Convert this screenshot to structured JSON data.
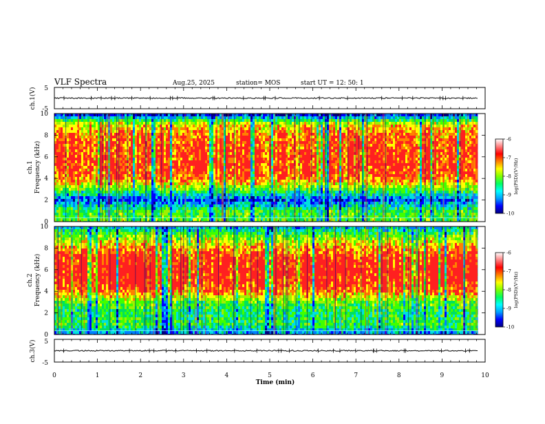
{
  "header": {
    "title": "VLF Spectra",
    "date": "Aug.25, 2025",
    "station": "station= MOS",
    "start": "start  UT  =   12: 50: 1"
  },
  "colors": {
    "spec": [
      "#000080",
      "#0000ff",
      "#0080ff",
      "#00e0e0",
      "#00e060",
      "#40ff00",
      "#a0f000",
      "#ffff00",
      "#ff8000",
      "#ff2020"
    ],
    "colorbar": [
      "#000080",
      "#0000ff",
      "#00a0ff",
      "#00ffff",
      "#00ff60",
      "#80ff00",
      "#ffff00",
      "#ff8000",
      "#ff0000",
      "#ff8080",
      "#ffffff"
    ]
  },
  "chart_data": [
    {
      "type": "line",
      "name": "ch1-waveform",
      "ylabel": "ch.1(V)",
      "ylim": [
        -5,
        5
      ],
      "y_ticks": [
        "5",
        "-5"
      ],
      "baseline_value": 0
    },
    {
      "type": "heatmap",
      "name": "ch1-spectrogram",
      "ylabel": "ch.1\nFrequency (kHz)",
      "ylim": [
        0,
        10
      ],
      "y_ticks": [
        "0",
        "2",
        "4",
        "6",
        "8",
        "10"
      ],
      "profile_by_khz": [
        0.55,
        0.5,
        0.2,
        0.55,
        0.85,
        0.9,
        0.9,
        0.88,
        0.85,
        0.7,
        0.1
      ],
      "colorbar": {
        "label": "log(PSD)(V²/Hz)",
        "range": [
          -10,
          -6
        ],
        "ticks": [
          "-6",
          "-7",
          "-8",
          "-9",
          "-10"
        ]
      }
    },
    {
      "type": "heatmap",
      "name": "ch2-spectrogram",
      "ylabel": "ch.2\nFrequency (kHz)",
      "ylim": [
        0,
        10
      ],
      "y_ticks": [
        "0",
        "2",
        "4",
        "6",
        "8",
        "10"
      ],
      "profile_by_khz": [
        0.25,
        0.5,
        0.45,
        0.55,
        0.85,
        0.95,
        0.97,
        0.95,
        0.8,
        0.6,
        0.3
      ],
      "colorbar": {
        "label": "log(PSD)(V²/Hz)",
        "range": [
          -10,
          -6
        ],
        "ticks": [
          "-6",
          "-7",
          "-8",
          "-9",
          "-10"
        ]
      }
    },
    {
      "type": "line",
      "name": "ch3-waveform",
      "ylabel": "ch.3(V)",
      "ylim": [
        -5,
        5
      ],
      "y_ticks": [
        "5",
        "-5"
      ],
      "baseline_value": 0
    }
  ],
  "x_axis": {
    "label": "Time  (min)",
    "range": [
      0,
      10
    ],
    "ticks": [
      "0",
      "1",
      "2",
      "3",
      "4",
      "5",
      "6",
      "7",
      "8",
      "9",
      "10"
    ],
    "data_end": 9.83
  }
}
